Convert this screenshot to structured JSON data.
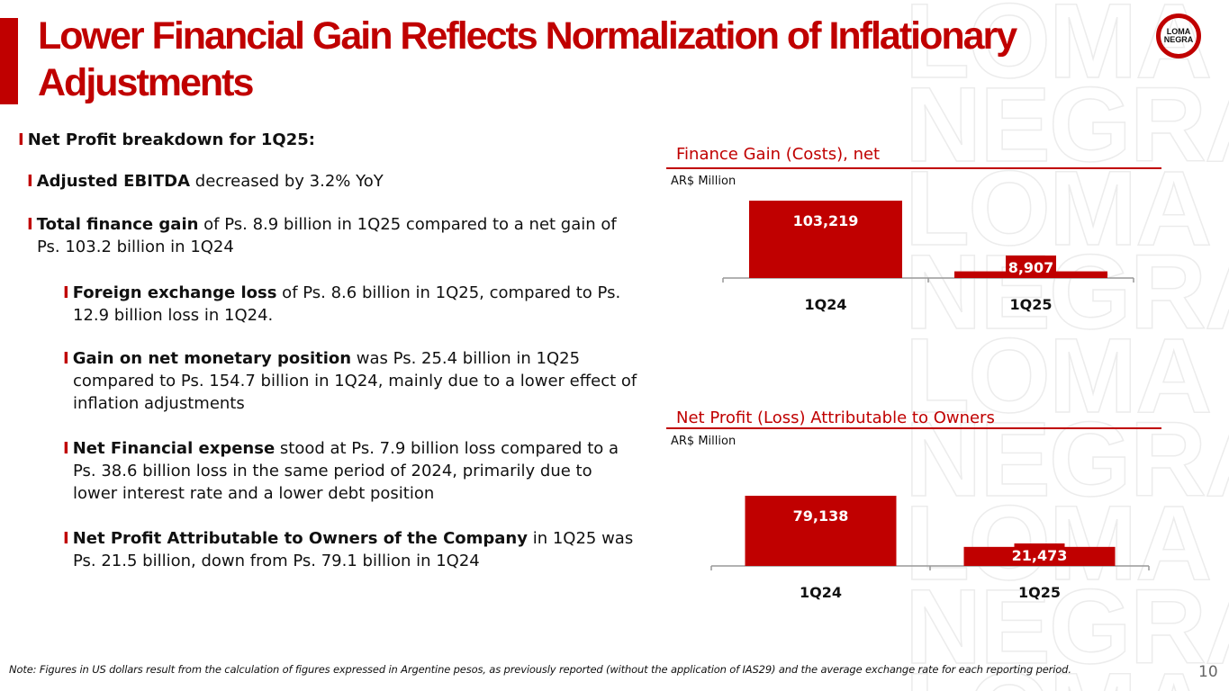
{
  "watermark": {
    "lines": [
      "LOMA",
      "NEGRA",
      "LOMA",
      "NEGRA",
      "LOMA",
      "NEGRA",
      "LOMA",
      "NEGRA",
      "LOMA"
    ]
  },
  "header": {
    "title": "Lower Financial Gain Reflects Normalization of Inflationary Adjustments",
    "logo_line1": "LOMA",
    "logo_line2": "NEGRA"
  },
  "bullets": {
    "b1": {
      "bold": "Net Profit breakdown for 1Q25:",
      "text": ""
    },
    "b2": {
      "bold": "Adjusted EBITDA",
      "text": " decreased by 3.2% YoY"
    },
    "b3": {
      "bold": "Total finance gain",
      "text": " of Ps. 8.9 billion in 1Q25 compared to a net gain of Ps. 103.2 billion in 1Q24"
    },
    "b4": {
      "bold": "Foreign exchange loss",
      "text": " of Ps. 8.6 billion in 1Q25, compared to Ps. 12.9 billion loss in 1Q24."
    },
    "b5": {
      "bold": "Gain on net monetary position",
      "text": " was Ps. 25.4 billion in 1Q25 compared to Ps. 154.7 billion in 1Q24, mainly due to a lower effect of inflation adjustments"
    },
    "b6": {
      "bold": "Net Financial expense",
      "text": " stood at Ps. 7.9 billion loss compared to a Ps. 38.6 billion loss in the same period of 2024, primarily due to lower interest rate and a lower debt position"
    },
    "b7": {
      "bold": "Net Profit Attributable to Owners of the Company",
      "text": " in 1Q25 was Ps. 21.5 billion, down from Ps. 79.1 billion in 1Q24"
    }
  },
  "chart_data": [
    {
      "type": "bar",
      "title": "Finance Gain (Costs), net",
      "unit": "AR$ Million",
      "categories": [
        "1Q24",
        "1Q25"
      ],
      "values": [
        103219,
        8907
      ],
      "labels": [
        "103,219",
        "8,907"
      ],
      "ylim": [
        0,
        103219
      ],
      "color": "#c00000"
    },
    {
      "type": "bar",
      "title": "Net Profit (Loss) Attributable to Owners",
      "unit": "AR$ Million",
      "categories": [
        "1Q24",
        "1Q25"
      ],
      "values": [
        79138,
        21473
      ],
      "labels": [
        "79,138",
        "21,473"
      ],
      "ylim": [
        0,
        79138
      ],
      "color": "#c00000"
    }
  ],
  "footer": {
    "note": "Note: Figures in US dollars result from the calculation of figures expressed in Argentine pesos, as previously reported (without the application of IAS29) and the average exchange rate for each reporting period.",
    "page": "10"
  },
  "colors": {
    "accent": "#c00000"
  }
}
